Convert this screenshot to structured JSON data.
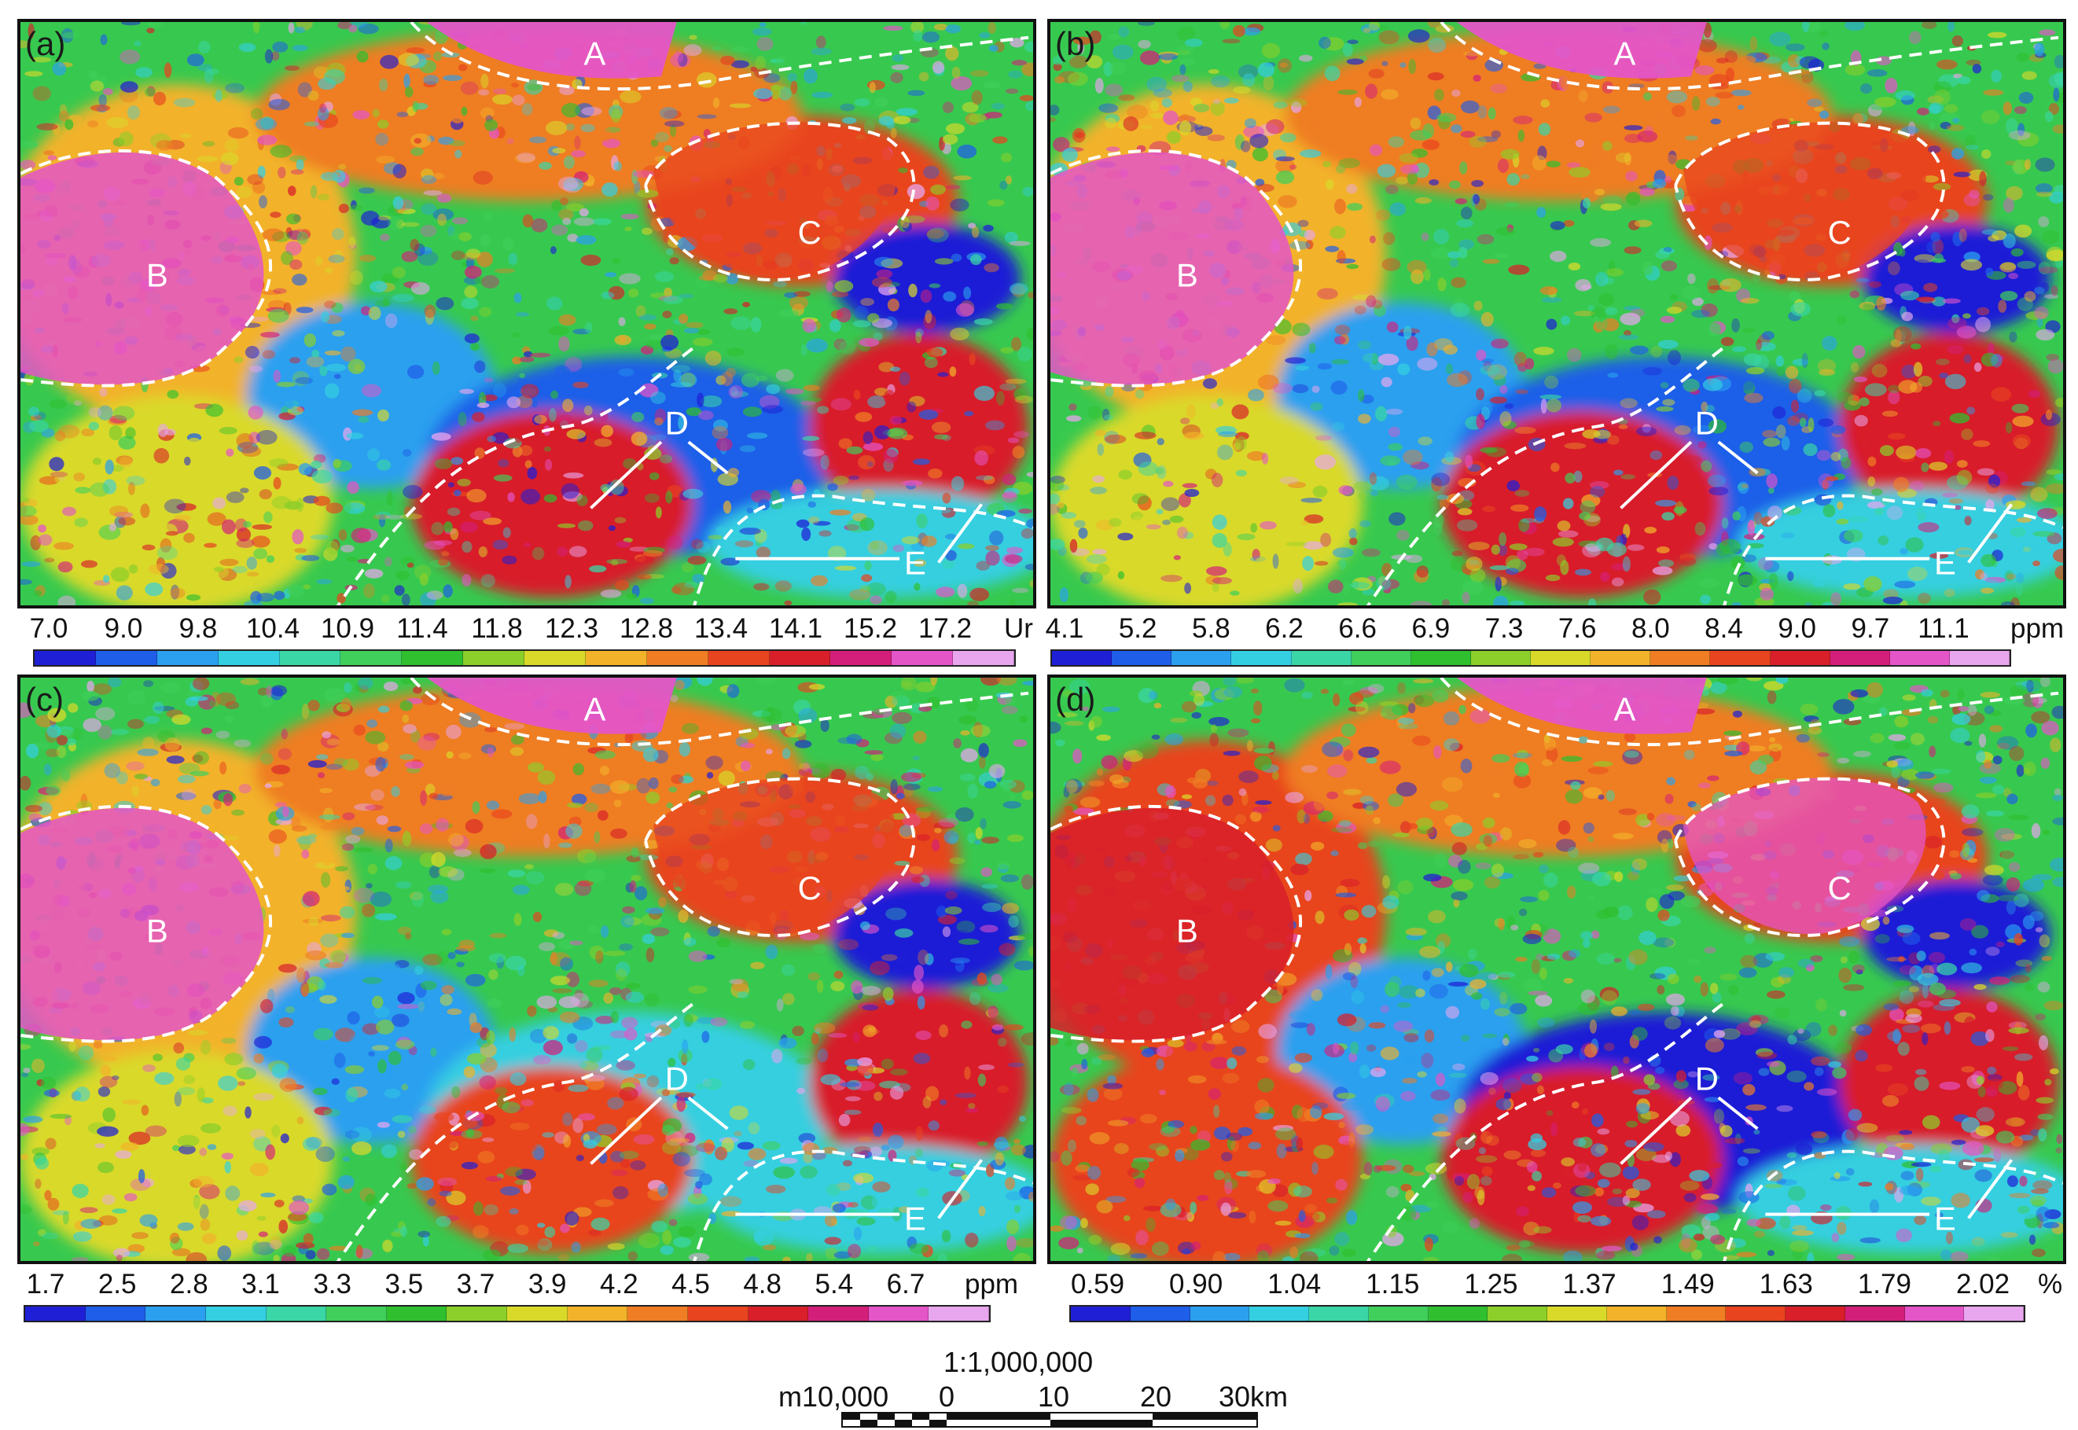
{
  "panels": [
    {
      "id": "a",
      "label": "(a)",
      "variant": 0
    },
    {
      "id": "b",
      "label": "(b)",
      "variant": 1
    },
    {
      "id": "c",
      "label": "(c)",
      "variant": 2
    },
    {
      "id": "d",
      "label": "(d)",
      "variant": 3
    }
  ],
  "region_labels": [
    "A",
    "B",
    "C",
    "D",
    "E"
  ],
  "legends": [
    {
      "id": "a",
      "ticks": [
        "7.0",
        "9.0",
        "9.8",
        "10.4",
        "10.9",
        "11.4",
        "11.8",
        "12.3",
        "12.8",
        "13.4",
        "14.1",
        "15.2",
        "17.2"
      ],
      "unit": "Ur"
    },
    {
      "id": "b",
      "ticks": [
        "4.1",
        "5.2",
        "5.8",
        "6.2",
        "6.6",
        "6.9",
        "7.3",
        "7.6",
        "8.0",
        "8.4",
        "9.0",
        "9.7",
        "11.1"
      ],
      "unit": "ppm"
    },
    {
      "id": "c",
      "ticks": [
        "1.7",
        "2.5",
        "2.8",
        "3.1",
        "3.3",
        "3.5",
        "3.7",
        "3.9",
        "4.2",
        "4.5",
        "4.8",
        "5.4",
        "6.7"
      ],
      "unit": "ppm"
    },
    {
      "id": "d",
      "ticks": [
        "0.59",
        "0.90",
        "1.04",
        "1.15",
        "1.25",
        "1.37",
        "1.49",
        "1.63",
        "1.79",
        "2.02"
      ],
      "unit": "%"
    }
  ],
  "colorbar": [
    "#1f1fd6",
    "#1f5ee8",
    "#2aa0ef",
    "#34cfe0",
    "#3ad6a6",
    "#3fcf5a",
    "#2fbf2f",
    "#8ccf2a",
    "#d9d92a",
    "#f2b22a",
    "#ef7d24",
    "#e8441f",
    "#d81f2a",
    "#d41f7a",
    "#e455c8",
    "#e8a6ee"
  ],
  "scale_bar": {
    "ratio": "1:1,000,000",
    "labels": [
      "m10,000",
      "0",
      "10",
      "20",
      "30km"
    ]
  }
}
